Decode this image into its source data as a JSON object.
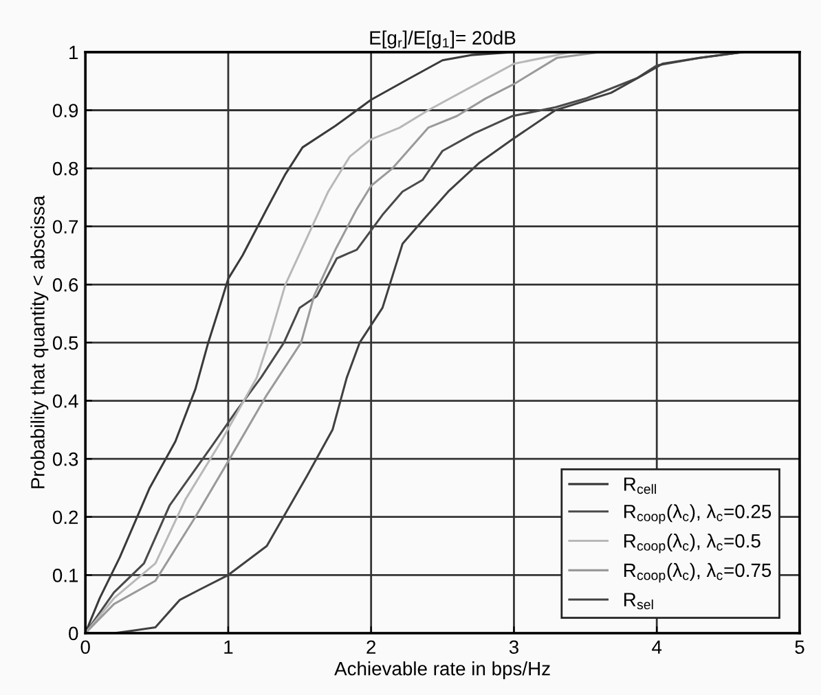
{
  "chart_data": {
    "type": "line",
    "title": "E[g$_{r}$]/E[g$_{1}$]= 20dB",
    "xlabel": "Achievable rate in bps/Hz",
    "ylabel": "Probability that quantity < abscissa",
    "xlim": [
      0,
      5
    ],
    "ylim": [
      0,
      1
    ],
    "xticks": [
      0,
      1,
      2,
      3,
      4,
      5
    ],
    "yticks": [
      0,
      0.1,
      0.2,
      0.3,
      0.4,
      0.5,
      0.6,
      0.7,
      0.8,
      0.9,
      1
    ],
    "grid": true,
    "legend": "bottom right",
    "line_style": "solid",
    "marker": "none",
    "series": [
      {
        "name": "R$_{cell}$",
        "color": "#3a3a3a",
        "x": [
          0,
          0.1,
          0.24,
          0.45,
          0.63,
          0.77,
          0.86,
          0.95,
          1.0,
          1.1,
          1.27,
          1.4,
          1.52,
          1.75,
          2.0,
          2.27,
          2.5,
          2.7,
          3.0
        ],
        "values": [
          0,
          0.06,
          0.13,
          0.25,
          0.33,
          0.42,
          0.5,
          0.57,
          0.61,
          0.65,
          0.73,
          0.79,
          0.836,
          0.873,
          0.918,
          0.955,
          0.986,
          0.995,
          1.0
        ]
      },
      {
        "name": "R$_{coop}$(λ$_{c}$), λ$_{c}$=0.25",
        "color": "#4a4a4a",
        "x": [
          0,
          0.2,
          0.41,
          0.59,
          0.88,
          1.05,
          1.23,
          1.39,
          1.5,
          1.62,
          1.76,
          1.9,
          2.08,
          2.22,
          2.36,
          2.5,
          2.72,
          2.99,
          3.29,
          3.5,
          3.86,
          4.0,
          4.3,
          4.6
        ],
        "values": [
          0,
          0.07,
          0.12,
          0.22,
          0.32,
          0.38,
          0.44,
          0.5,
          0.56,
          0.58,
          0.645,
          0.66,
          0.72,
          0.76,
          0.78,
          0.83,
          0.86,
          0.89,
          0.905,
          0.92,
          0.955,
          0.977,
          0.99,
          1.0
        ]
      },
      {
        "name": "R$_{coop}$(λ$_{c}$), λ$_{c}$=0.5",
        "color": "#b8b8b8",
        "x": [
          0,
          0.2,
          0.49,
          0.7,
          0.95,
          1.2,
          1.28,
          1.4,
          1.55,
          1.7,
          1.85,
          2.0,
          2.2,
          2.4,
          2.7,
          3.0,
          3.4
        ],
        "values": [
          0,
          0.06,
          0.12,
          0.23,
          0.33,
          0.44,
          0.5,
          0.6,
          0.68,
          0.76,
          0.82,
          0.85,
          0.87,
          0.9,
          0.94,
          0.98,
          1.0
        ]
      },
      {
        "name": "R$_{coop}$(λ$_{c}$), λ$_{c}$=0.75",
        "color": "#9a9a9a",
        "x": [
          0,
          0.2,
          0.49,
          0.77,
          1.01,
          1.27,
          1.51,
          1.6,
          1.75,
          1.9,
          2.0,
          2.15,
          2.4,
          2.6,
          2.8,
          3.0,
          3.3,
          3.6
        ],
        "values": [
          0,
          0.05,
          0.09,
          0.2,
          0.3,
          0.41,
          0.5,
          0.58,
          0.66,
          0.73,
          0.77,
          0.8,
          0.87,
          0.89,
          0.92,
          0.945,
          0.99,
          1.0
        ]
      },
      {
        "name": "R$_{sel}$",
        "color": "#404040",
        "x": [
          0,
          0.2,
          0.35,
          0.49,
          0.66,
          0.8,
          1.0,
          1.27,
          1.41,
          1.55,
          1.73,
          1.83,
          1.92,
          2.08,
          2.22,
          2.36,
          2.54,
          2.76,
          2.99,
          3.29,
          3.68,
          3.9,
          4.04,
          4.3,
          4.6
        ],
        "values": [
          0,
          0,
          0.005,
          0.01,
          0.057,
          0.075,
          0.1,
          0.15,
          0.21,
          0.27,
          0.35,
          0.44,
          0.5,
          0.56,
          0.67,
          0.71,
          0.76,
          0.81,
          0.85,
          0.9,
          0.93,
          0.96,
          0.98,
          0.99,
          1.0
        ]
      }
    ]
  }
}
